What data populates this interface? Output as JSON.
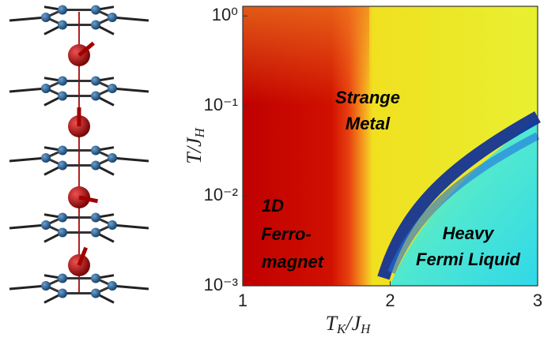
{
  "chart_data": {
    "type": "heatmap",
    "xlabel": [
      "T",
      "K",
      "/J",
      "H"
    ],
    "ylabel": [
      "T",
      "/J",
      "H"
    ],
    "xlim": [
      1,
      3
    ],
    "xticks": [
      1,
      2,
      3
    ],
    "ylim": [
      0.001,
      1.28
    ],
    "ylog": true,
    "yticks": [
      {
        "value": 1,
        "label": "10⁰"
      },
      {
        "value": 0.1,
        "label": "10⁻¹"
      },
      {
        "value": 0.01,
        "label": "10⁻²"
      },
      {
        "value": 0.001,
        "label": "10⁻³"
      }
    ],
    "annotations": [
      [
        "Strange",
        "Metal"
      ],
      [
        "1D",
        "Ferro-",
        "magnet"
      ],
      [
        "Heavy",
        "Fermi Liquid"
      ]
    ]
  }
}
